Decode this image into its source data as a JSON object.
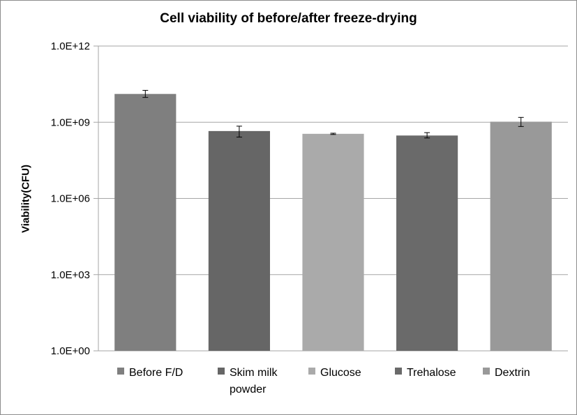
{
  "chart_data": {
    "type": "bar",
    "title": "Cell viability of before/after freeze-drying",
    "ylabel": "Viability(CFU)",
    "xlabel": "",
    "yscale": "log",
    "ylim": [
      1,
      1000000000000
    ],
    "yticks": [
      {
        "value": 1,
        "label": "1.0E+00"
      },
      {
        "value": 1000,
        "label": "1.0E+03"
      },
      {
        "value": 1000000,
        "label": "1.0E+06"
      },
      {
        "value": 1000000000,
        "label": "1.0E+09"
      },
      {
        "value": 1000000000000,
        "label": "1.0E+12"
      }
    ],
    "grid": "horizontal",
    "legend_position": "bottom",
    "categories": [
      "Before F/D",
      "Skim milk powder",
      "Glucose",
      "Trehalose",
      "Dextrin"
    ],
    "legend_labels": [
      [
        "Before F/D"
      ],
      [
        "Skim milk",
        "powder"
      ],
      [
        "Glucose"
      ],
      [
        "Trehalose"
      ],
      [
        "Dextrin"
      ]
    ],
    "values": [
      13000000000,
      450000000,
      350000000,
      300000000,
      1050000000
    ],
    "errors": [
      [
        9500000000,
        18000000000
      ],
      [
        260000000,
        700000000
      ],
      [
        330000000,
        370000000
      ],
      [
        240000000,
        390000000
      ],
      [
        680000000,
        1550000000
      ]
    ],
    "colors": [
      "#7f7f7f",
      "#666666",
      "#aaaaaa",
      "#6a6a6a",
      "#999999"
    ]
  }
}
